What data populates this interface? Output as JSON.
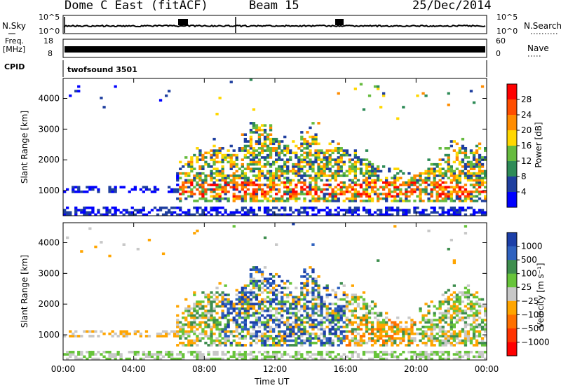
{
  "header": {
    "station": "Dome C East (fitACF)",
    "beam": "Beam 15",
    "date": "25/Dec/2014"
  },
  "panels": {
    "nsky_label": "N.Sky",
    "nsky_ticks": [
      "10^5",
      "10^0"
    ],
    "nsearch_label": "N.Search",
    "freq_label_line1": "Freq.",
    "freq_label_line2": "[MHz]",
    "freq_ticks": [
      "18",
      "8"
    ],
    "nave_ticks": [
      "60",
      "0"
    ],
    "nave_label": "Nave",
    "cpid_label": "CPID",
    "cpid_value": "twofsound 3501"
  },
  "chart_data": [
    {
      "type": "heatmap",
      "name": "power",
      "ylabel": "Slant Range [km]",
      "xlabel": "",
      "yticks": [
        1000,
        2000,
        3000,
        4000
      ],
      "ylim": [
        180,
        4650
      ],
      "xticks": [
        "00:00",
        "04:00",
        "08:00",
        "12:00",
        "16:00",
        "20:00",
        "00:00"
      ],
      "xlim_hours": [
        0,
        24
      ],
      "colorbar_label": "Power [dB]",
      "colorbar_ticks": [
        "28",
        "24",
        "20",
        "16",
        "12",
        "8",
        "4"
      ],
      "colorbar_colors": [
        "#ff0000",
        "#ff4e00",
        "#ff8c00",
        "#ffd700",
        "#66bb3f",
        "#2e8b57",
        "#1f3f9f",
        "#0000ff"
      ]
    },
    {
      "type": "heatmap",
      "name": "velocity",
      "ylabel": "Slant Range [km]",
      "xlabel": "Time UT",
      "yticks": [
        1000,
        2000,
        3000,
        4000
      ],
      "ylim": [
        180,
        4650
      ],
      "xticks": [
        "00:00",
        "04:00",
        "08:00",
        "12:00",
        "16:00",
        "20:00",
        "00:00"
      ],
      "xlim_hours": [
        0,
        24
      ],
      "colorbar_label": "Velocity [m s⁻¹]",
      "colorbar_ticks": [
        "1000",
        "500",
        "100",
        "25",
        "−25",
        "−100",
        "−500",
        "−1000"
      ],
      "colorbar_colors": [
        "#1c3fa8",
        "#2f62bf",
        "#3e8e4e",
        "#67c43a",
        "#c8c8c8",
        "#ffa500",
        "#ff7000",
        "#ff3300",
        "#ff0000"
      ]
    }
  ]
}
